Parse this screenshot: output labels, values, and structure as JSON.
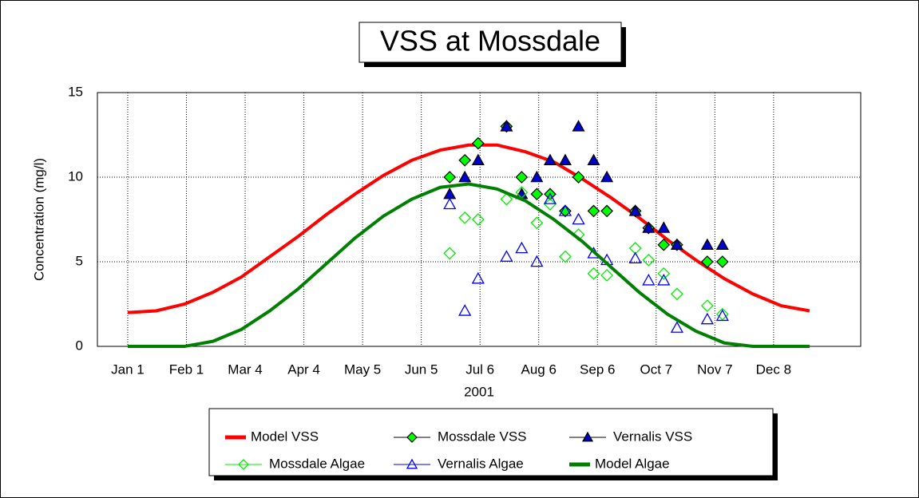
{
  "chart_data": {
    "type": "scatter",
    "title": "VSS at Mossdale",
    "xlabel": "2001",
    "ylabel": "Concentration (mg/l)",
    "xlim": [
      -15,
      388
    ],
    "ylim": [
      0,
      15
    ],
    "xticks": [
      {
        "value": 1,
        "label": "Jan 1"
      },
      {
        "value": 32,
        "label": "Feb 1"
      },
      {
        "value": 63,
        "label": "Mar 4"
      },
      {
        "value": 94,
        "label": "Apr 4"
      },
      {
        "value": 125,
        "label": "May 5"
      },
      {
        "value": 156,
        "label": "Jun 5"
      },
      {
        "value": 187,
        "label": "Jul 6"
      },
      {
        "value": 218,
        "label": "Aug 6"
      },
      {
        "value": 249,
        "label": "Sep 6"
      },
      {
        "value": 280,
        "label": "Oct 7"
      },
      {
        "value": 311,
        "label": "Nov 7"
      },
      {
        "value": 342,
        "label": "Dec 8"
      }
    ],
    "yticks": [
      0,
      5,
      10,
      15
    ],
    "grid": true,
    "legend": "bottom",
    "series": [
      {
        "name": "Model VSS",
        "style": "line",
        "color": "#ff0000",
        "x": [
          1,
          16,
          31,
          46,
          61,
          76,
          91,
          106,
          121,
          136,
          151,
          166,
          181,
          196,
          211,
          226,
          241,
          256,
          271,
          286,
          301,
          316,
          331,
          346,
          361
        ],
        "values": [
          2.0,
          2.1,
          2.5,
          3.2,
          4.1,
          5.3,
          6.5,
          7.8,
          9.0,
          10.1,
          11.0,
          11.6,
          11.9,
          11.9,
          11.5,
          10.9,
          9.9,
          8.8,
          7.6,
          6.3,
          5.1,
          4.0,
          3.1,
          2.4,
          2.1
        ]
      },
      {
        "name": "Mossdale VSS",
        "style": "marker",
        "marker": "diamond",
        "filled": true,
        "color": "#00ff00",
        "x": [
          171,
          179,
          186,
          201,
          209,
          217,
          224,
          232,
          239,
          247,
          254,
          269,
          276,
          284,
          291,
          307,
          315
        ],
        "values": [
          10,
          11,
          12,
          13,
          10,
          9,
          9,
          8,
          10,
          8,
          8,
          8,
          7,
          6,
          6,
          5,
          5
        ]
      },
      {
        "name": "Vernalis VSS",
        "style": "marker",
        "marker": "triangle",
        "filled": true,
        "color": "#0000cc",
        "x": [
          171,
          179,
          186,
          201,
          209,
          217,
          224,
          232,
          239,
          247,
          254,
          269,
          276,
          284,
          291,
          307,
          315
        ],
        "values": [
          9,
          10,
          11,
          13,
          9,
          10,
          11,
          11,
          13,
          11,
          10,
          8,
          7,
          7,
          6,
          6,
          6
        ]
      },
      {
        "name": "Mossdale Algae",
        "style": "marker",
        "marker": "diamond",
        "filled": false,
        "color": "#00ee00",
        "x": [
          171,
          179,
          186,
          201,
          209,
          217,
          224,
          232,
          239,
          247,
          254,
          269,
          276,
          284,
          291,
          307,
          315
        ],
        "values": [
          5.5,
          7.6,
          7.5,
          8.7,
          9.1,
          7.3,
          8.4,
          5.3,
          6.6,
          4.3,
          4.2,
          5.8,
          5.1,
          4.3,
          3.1,
          2.4,
          1.9
        ]
      },
      {
        "name": "Vernalis Algae",
        "style": "marker",
        "marker": "triangle",
        "filled": false,
        "color": "#0000ff",
        "x": [
          171,
          179,
          186,
          201,
          209,
          217,
          224,
          232,
          239,
          247,
          254,
          269,
          276,
          284,
          291,
          307,
          315
        ],
        "values": [
          8.4,
          2.1,
          4.0,
          5.3,
          5.8,
          5.0,
          8.7,
          8.0,
          7.5,
          5.5,
          5.1,
          5.2,
          3.9,
          3.9,
          1.1,
          1.6,
          1.8
        ]
      },
      {
        "name": "Model Algae",
        "style": "line",
        "color": "#008000",
        "x": [
          1,
          16,
          31,
          46,
          61,
          76,
          91,
          106,
          121,
          136,
          151,
          166,
          181,
          196,
          211,
          226,
          241,
          256,
          271,
          286,
          301,
          316,
          331,
          346,
          361
        ],
        "values": [
          0,
          0,
          0,
          0.3,
          1.0,
          2.1,
          3.4,
          4.9,
          6.4,
          7.7,
          8.7,
          9.4,
          9.6,
          9.3,
          8.6,
          7.5,
          6.2,
          4.7,
          3.2,
          1.9,
          0.9,
          0.2,
          0,
          0,
          0
        ]
      }
    ]
  }
}
